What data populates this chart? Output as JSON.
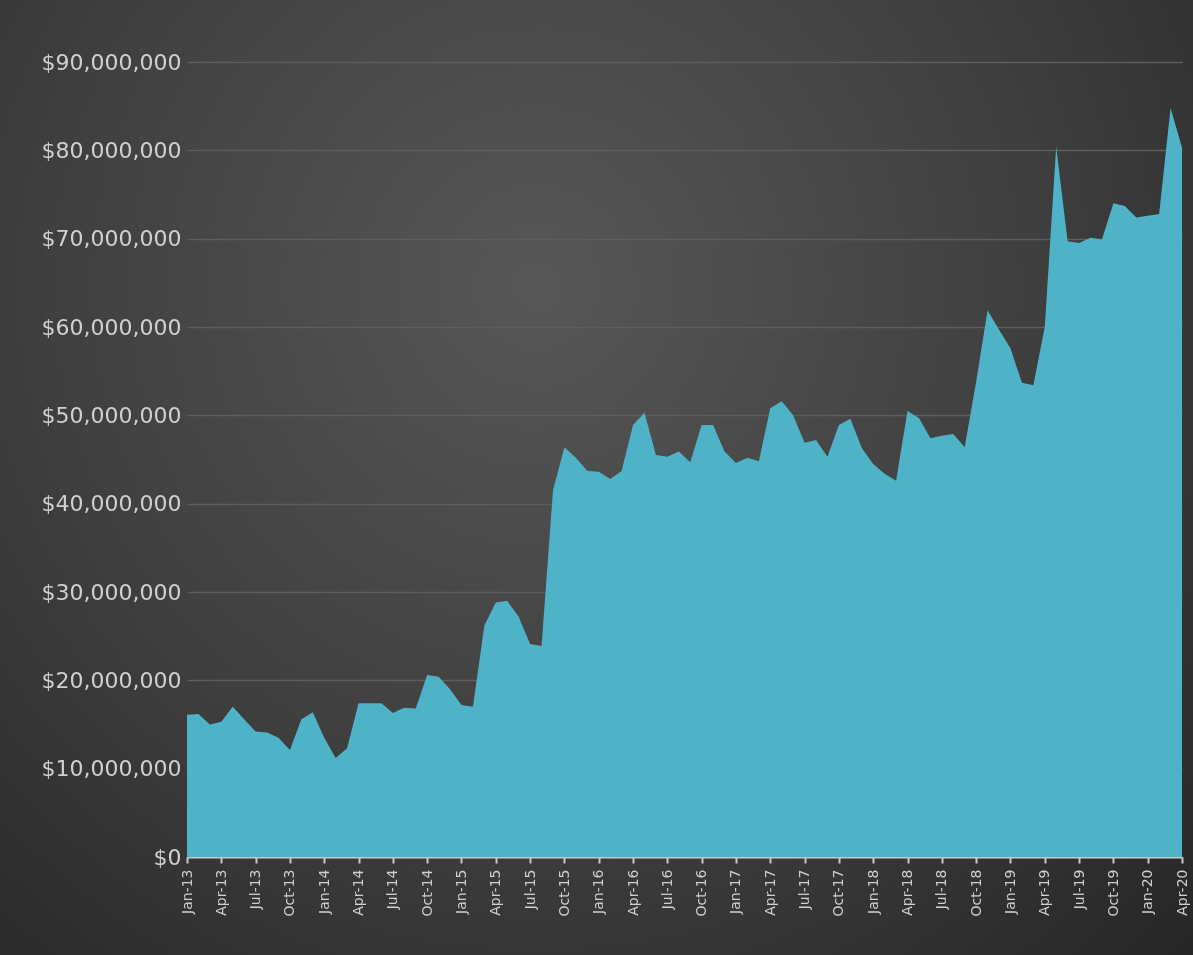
{
  "chart_data": {
    "type": "area",
    "color": "#4fb3c8",
    "categories": [
      "Jan-13",
      null,
      null,
      "Apr-13",
      null,
      null,
      "Jul-13",
      null,
      null,
      "Oct-13",
      null,
      null,
      "Jan-14",
      null,
      null,
      "Apr-14",
      null,
      null,
      "Jul-14",
      null,
      null,
      "Oct-14",
      null,
      null,
      "Jan-15",
      null,
      null,
      "Apr-15",
      null,
      null,
      "Jul-15",
      null,
      null,
      "Oct-15",
      null,
      null,
      "Jan-16",
      null,
      null,
      "Apr-16",
      null,
      null,
      "Jul-16",
      null,
      null,
      "Oct-16",
      null,
      null,
      "Jan-17",
      null,
      null,
      "Apr-17",
      null,
      null,
      "Jul-17",
      null,
      null,
      "Oct-17",
      null,
      null,
      "Jan-18",
      null,
      null,
      "Apr-18",
      null,
      null,
      "Jul-18",
      null,
      null,
      "Oct-18",
      null,
      null,
      "Jan-19",
      null,
      null,
      "Apr-19",
      null,
      null,
      "Jul-19",
      null,
      null,
      "Oct-19",
      null,
      null,
      "Jan-20",
      null,
      null,
      "Apr-20"
    ],
    "values": [
      16100000,
      16200000,
      15000000,
      15300000,
      17000000,
      15600000,
      14200000,
      14100000,
      13500000,
      12100000,
      15600000,
      16400000,
      13500000,
      11200000,
      12300000,
      17400000,
      17400000,
      17400000,
      16300000,
      16900000,
      16800000,
      20600000,
      20400000,
      19000000,
      17200000,
      17000000,
      26200000,
      28800000,
      29000000,
      27200000,
      24100000,
      23900000,
      41500000,
      46400000,
      45200000,
      43700000,
      43600000,
      42800000,
      43700000,
      48900000,
      50300000,
      45500000,
      45300000,
      45900000,
      44700000,
      48900000,
      48900000,
      45900000,
      44600000,
      45200000,
      44800000,
      50800000,
      51600000,
      50000000,
      46900000,
      47200000,
      45300000,
      48900000,
      49600000,
      46300000,
      44500000,
      43400000,
      42600000,
      50500000,
      49700000,
      47400000,
      47700000,
      47900000,
      46400000,
      53800000,
      61900000,
      59700000,
      57600000,
      53700000,
      53400000,
      60000000,
      80400000,
      69700000,
      69500000,
      70100000,
      69900000,
      74000000,
      73700000,
      72400000,
      72600000,
      72800000,
      84800000,
      80300000
    ],
    "ylim": [
      0,
      90000000
    ],
    "yticks": [
      {
        "value": 0,
        "label": "$0"
      },
      {
        "value": 10000000,
        "label": "$10,000,000"
      },
      {
        "value": 20000000,
        "label": "$20,000,000"
      },
      {
        "value": 30000000,
        "label": "$30,000,000"
      },
      {
        "value": 40000000,
        "label": "$40,000,000"
      },
      {
        "value": 50000000,
        "label": "$50,000,000"
      },
      {
        "value": 60000000,
        "label": "$60,000,000"
      },
      {
        "value": 70000000,
        "label": "$70,000,000"
      },
      {
        "value": 80000000,
        "label": "$80,000,000"
      },
      {
        "value": 90000000,
        "label": "$90,000,000"
      }
    ],
    "grid": "y"
  }
}
